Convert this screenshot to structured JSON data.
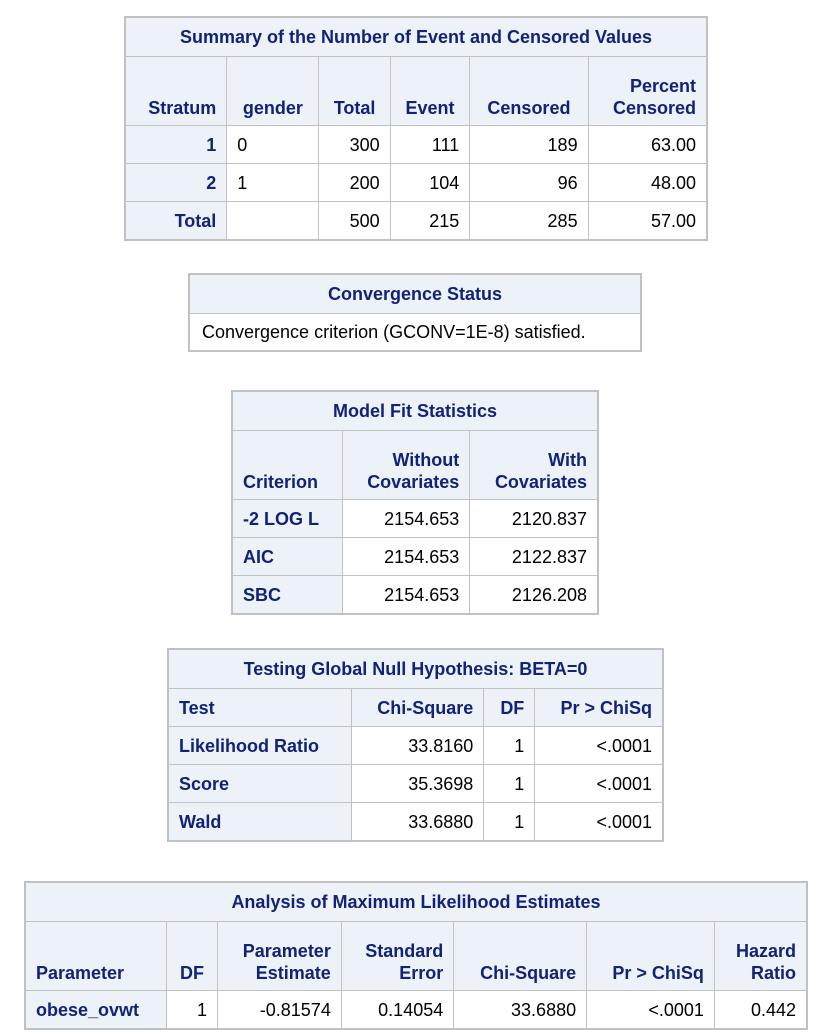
{
  "summary": {
    "title": "Summary of the Number of Event and Censored Values",
    "headers": [
      "Stratum",
      "gender",
      "Total",
      "Event",
      "Censored",
      "Percent\nCensored"
    ],
    "header_line1": [
      "",
      "",
      "",
      "",
      "",
      "Percent"
    ],
    "header_line2": [
      "Stratum",
      "gender",
      "Total",
      "Event",
      "Censored",
      "Censored"
    ],
    "rows": [
      {
        "stratum": "1",
        "gender": "0",
        "total": "300",
        "event": "111",
        "censored": "189",
        "percent": "63.00"
      },
      {
        "stratum": "2",
        "gender": "1",
        "total": "200",
        "event": "104",
        "censored": "96",
        "percent": "48.00"
      }
    ],
    "total_row": {
      "label": "Total",
      "gender": "",
      "total": "500",
      "event": "215",
      "censored": "285",
      "percent": "57.00"
    }
  },
  "convergence": {
    "title": "Convergence Status",
    "message": "Convergence criterion (GCONV=1E-8) satisfied."
  },
  "fit": {
    "title": "Model Fit Statistics",
    "header_line1": [
      "",
      "Without",
      "With"
    ],
    "header_line2": [
      "Criterion",
      "Covariates",
      "Covariates"
    ],
    "rows": [
      {
        "criterion": "-2 LOG L",
        "without": "2154.653",
        "with": "2120.837"
      },
      {
        "criterion": "AIC",
        "without": "2154.653",
        "with": "2122.837"
      },
      {
        "criterion": "SBC",
        "without": "2154.653",
        "with": "2126.208"
      }
    ]
  },
  "global": {
    "title": "Testing Global Null Hypothesis: BETA=0",
    "headers": [
      "Test",
      "Chi-Square",
      "DF",
      "Pr > ChiSq"
    ],
    "rows": [
      {
        "test": "Likelihood Ratio",
        "chisq": "33.8160",
        "df": "1",
        "p": "<.0001"
      },
      {
        "test": "Score",
        "chisq": "35.3698",
        "df": "1",
        "p": "<.0001"
      },
      {
        "test": "Wald",
        "chisq": "33.6880",
        "df": "1",
        "p": "<.0001"
      }
    ]
  },
  "mle": {
    "title": "Analysis of Maximum Likelihood Estimates",
    "header_line1": [
      "",
      "",
      "Parameter",
      "Standard",
      "",
      "",
      "Hazard"
    ],
    "header_line2": [
      "Parameter",
      "DF",
      "Estimate",
      "Error",
      "Chi-Square",
      "Pr > ChiSq",
      "Ratio"
    ],
    "rows": [
      {
        "parameter": "obese_ovwt",
        "df": "1",
        "estimate": "-0.81574",
        "error": "0.14054",
        "chisq": "33.6880",
        "p": "<.0001",
        "hr": "0.442"
      }
    ]
  }
}
